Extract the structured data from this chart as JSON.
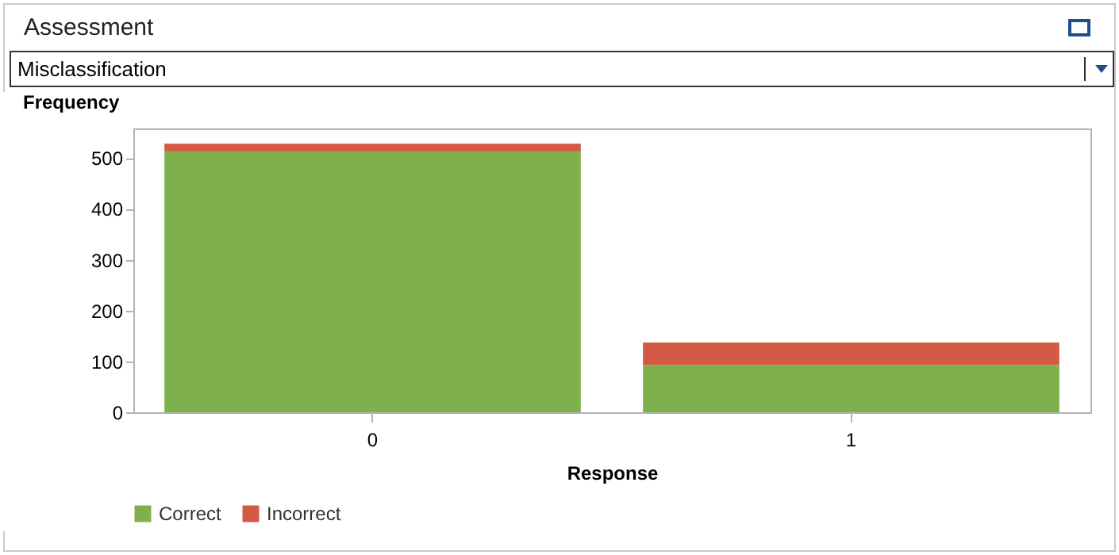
{
  "chart_data": {
    "type": "bar",
    "title": "Assessment",
    "subtitle": "Misclassification",
    "xlabel": "Response",
    "ylabel": "Frequency",
    "categories": [
      "0",
      "1"
    ],
    "stacked": true,
    "series": [
      {
        "name": "Correct",
        "color": "#7eb04b",
        "values": [
          512,
          93
        ]
      },
      {
        "name": "Incorrect",
        "color": "#d35a45",
        "values": [
          16,
          44
        ]
      }
    ],
    "ylim": [
      0,
      558
    ],
    "yticks": [
      0,
      100,
      200,
      300,
      400,
      500
    ],
    "grid": false,
    "legend": "bottom"
  }
}
